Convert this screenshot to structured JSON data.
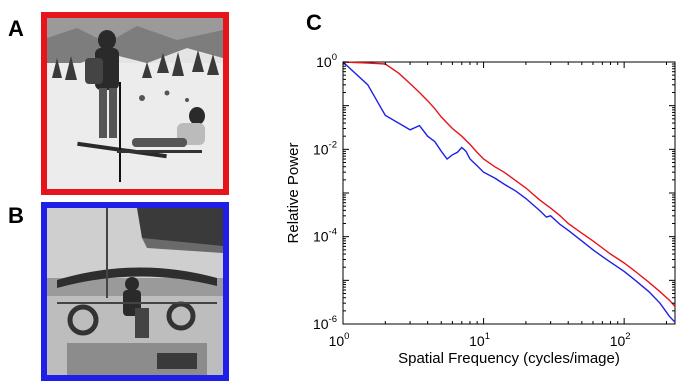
{
  "panels": {
    "a": {
      "letter": "A",
      "frame_color": "#e8141b",
      "icon": "ski-slope-photo-icon"
    },
    "b": {
      "letter": "B",
      "frame_color": "#1f1fe8",
      "icon": "sailboat-photo-icon"
    },
    "c": {
      "letter": "C"
    }
  },
  "chart_data": {
    "type": "line",
    "title": "",
    "xlabel": "Spatial Frequency (cycles/image)",
    "ylabel": "Relative Power",
    "xscale": "log",
    "yscale": "log",
    "xlim": [
      1,
      230
    ],
    "ylim": [
      1e-06,
      1
    ],
    "xticks": [
      {
        "base": "10",
        "exp": "0",
        "value": 1
      },
      {
        "base": "10",
        "exp": "1",
        "value": 10
      },
      {
        "base": "10",
        "exp": "2",
        "value": 100
      }
    ],
    "yticks": [
      {
        "base": "10",
        "exp": "-6",
        "value": 1e-06
      },
      {
        "base": "10",
        "exp": "-4",
        "value": 0.0001
      },
      {
        "base": "10",
        "exp": "-2",
        "value": 0.01
      },
      {
        "base": "10",
        "exp": "0",
        "value": 1
      }
    ],
    "grid": false,
    "legend": "none",
    "series": [
      {
        "color": "#e8141b",
        "points": [
          [
            1,
            1
          ],
          [
            1.5,
            0.95
          ],
          [
            2,
            0.9
          ],
          [
            2.5,
            0.55
          ],
          [
            3,
            0.32
          ],
          [
            3.5,
            0.2
          ],
          [
            4,
            0.13
          ],
          [
            4.5,
            0.085
          ],
          [
            5,
            0.055
          ],
          [
            6,
            0.03
          ],
          [
            7,
            0.02
          ],
          [
            8,
            0.013
          ],
          [
            9,
            0.0085
          ],
          [
            10,
            0.006
          ],
          [
            12,
            0.004
          ],
          [
            14,
            0.003
          ],
          [
            17,
            0.0019
          ],
          [
            20,
            0.0013
          ],
          [
            25,
            0.0007
          ],
          [
            30,
            0.00045
          ],
          [
            35,
            0.0003
          ],
          [
            40,
            0.0002
          ],
          [
            50,
            0.00012
          ],
          [
            60,
            8e-05
          ],
          [
            70,
            5.5e-05
          ],
          [
            80,
            4e-05
          ],
          [
            100,
            2.5e-05
          ],
          [
            120,
            1.6e-05
          ],
          [
            150,
            9e-06
          ],
          [
            180,
            5.5e-06
          ],
          [
            210,
            3.5e-06
          ],
          [
            230,
            2.5e-06
          ]
        ]
      },
      {
        "color": "#1f1fe8",
        "points": [
          [
            1,
            1
          ],
          [
            1.5,
            0.3
          ],
          [
            2,
            0.06
          ],
          [
            3,
            0.028
          ],
          [
            3.5,
            0.035
          ],
          [
            4,
            0.02
          ],
          [
            4.5,
            0.015
          ],
          [
            5,
            0.009
          ],
          [
            5.5,
            0.006
          ],
          [
            6,
            0.0075
          ],
          [
            6.5,
            0.0085
          ],
          [
            7,
            0.011
          ],
          [
            7.5,
            0.009
          ],
          [
            8,
            0.006
          ],
          [
            9,
            0.0042
          ],
          [
            10,
            0.003
          ],
          [
            12,
            0.0022
          ],
          [
            14,
            0.0016
          ],
          [
            17,
            0.0011
          ],
          [
            20,
            0.00075
          ],
          [
            25,
            0.0004
          ],
          [
            28,
            0.00028
          ],
          [
            30,
            0.0003
          ],
          [
            35,
            0.00019
          ],
          [
            40,
            0.00014
          ],
          [
            50,
            8e-05
          ],
          [
            60,
            5e-05
          ],
          [
            70,
            3.5e-05
          ],
          [
            80,
            2.6e-05
          ],
          [
            100,
            1.6e-05
          ],
          [
            120,
            1e-05
          ],
          [
            150,
            5.5e-06
          ],
          [
            180,
            3e-06
          ],
          [
            210,
            1.5e-06
          ],
          [
            230,
            1.1e-06
          ]
        ]
      }
    ]
  }
}
